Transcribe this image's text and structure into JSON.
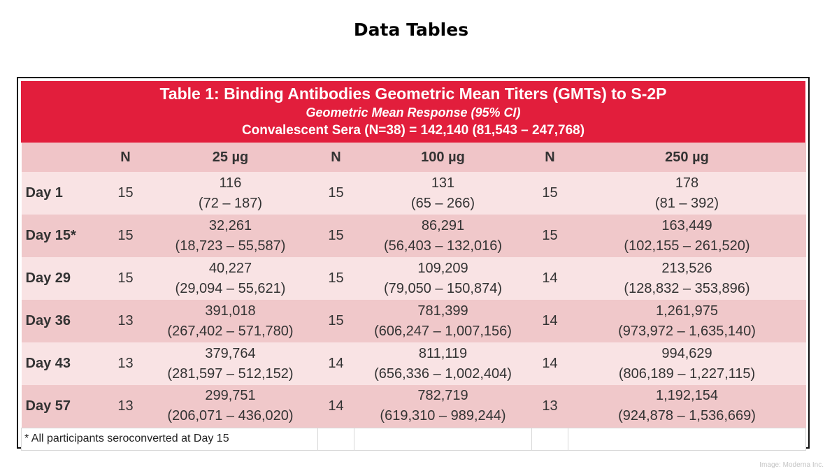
{
  "heading": "Data Tables",
  "table": {
    "title": "Table 1: Binding Antibodies Geometric Mean Titers (GMTs) to S-2P",
    "subtitle": "Geometric Mean Response (95% CI)",
    "convalescent": "Convalescent Sera (N=38) = 142,140 (81,543 – 247,768)",
    "columns": {
      "n1": "N",
      "dose1": "25 µg",
      "n2": "N",
      "dose2": "100 µg",
      "n3": "N",
      "dose3": "250 µg"
    },
    "rows": [
      {
        "day": "Day 1",
        "n25": "15",
        "gmt25": "116",
        "ci25": "(72 – 187)",
        "n100": "15",
        "gmt100": "131",
        "ci100": "(65 – 266)",
        "n250": "15",
        "gmt250": "178",
        "ci250": "(81 – 392)"
      },
      {
        "day": "Day 15*",
        "n25": "15",
        "gmt25": "32,261",
        "ci25": "(18,723 – 55,587)",
        "n100": "15",
        "gmt100": "86,291",
        "ci100": "(56,403 – 132,016)",
        "n250": "15",
        "gmt250": "163,449",
        "ci250": "(102,155 – 261,520)"
      },
      {
        "day": "Day 29",
        "n25": "15",
        "gmt25": "40,227",
        "ci25": "(29,094 – 55,621)",
        "n100": "15",
        "gmt100": "109,209",
        "ci100": "(79,050 – 150,874)",
        "n250": "14",
        "gmt250": "213,526",
        "ci250": "(128,832 – 353,896)"
      },
      {
        "day": "Day 36",
        "n25": "13",
        "gmt25": "391,018",
        "ci25": "(267,402 – 571,780)",
        "n100": "15",
        "gmt100": "781,399",
        "ci100": "(606,247 – 1,007,156)",
        "n250": "14",
        "gmt250": "1,261,975",
        "ci250": "(973,972 – 1,635,140)"
      },
      {
        "day": "Day 43",
        "n25": "13",
        "gmt25": "379,764",
        "ci25": "(281,597 – 512,152)",
        "n100": "14",
        "gmt100": "811,119",
        "ci100": "(656,336 – 1,002,404)",
        "n250": "14",
        "gmt250": "994,629",
        "ci250": "(806,189 – 1,227,115)"
      },
      {
        "day": "Day 57",
        "n25": "13",
        "gmt25": "299,751",
        "ci25": "(206,071 – 436,020)",
        "n100": "14",
        "gmt100": "782,719",
        "ci100": "(619,310 – 989,244)",
        "n250": "13",
        "gmt250": "1,192,154",
        "ci250": "(924,878 – 1,536,669)"
      }
    ],
    "footnote": "* All participants seroconverted at Day 15"
  },
  "credit": "Image: Moderna Inc.",
  "colors": {
    "title_band": "#e21e3c",
    "header_row": "#f0c5c8",
    "row_light": "#f9e3e4",
    "row_dark": "#f0c8ca"
  }
}
